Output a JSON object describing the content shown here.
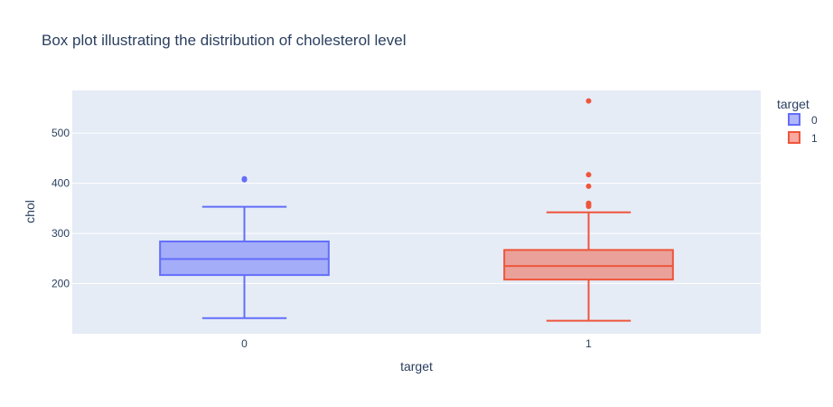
{
  "chart_data": {
    "type": "box",
    "title": "Box plot illustrating the distribution of cholesterol level",
    "xlabel": "target",
    "ylabel": "chol",
    "categories": [
      "0",
      "1"
    ],
    "y_ticks": [
      200,
      300,
      400,
      500
    ],
    "ylim": [
      100,
      585
    ],
    "grid": true,
    "legend": {
      "title": "target",
      "placement": "right"
    },
    "series": [
      {
        "name": "0",
        "color": "#636efa",
        "fill": "rgba(99,110,250,0.5)",
        "lower_fence": 131,
        "q1": 217,
        "median": 249,
        "q3": 284,
        "upper_fence": 353,
        "outliers": [
          407,
          409
        ]
      },
      {
        "name": "1",
        "color": "#ef553b",
        "fill": "rgba(239,85,59,0.5)",
        "lower_fence": 126,
        "q1": 208,
        "median": 235,
        "q3": 267,
        "upper_fence": 342,
        "outliers": [
          354,
          358,
          360,
          394,
          417,
          564
        ]
      }
    ]
  }
}
